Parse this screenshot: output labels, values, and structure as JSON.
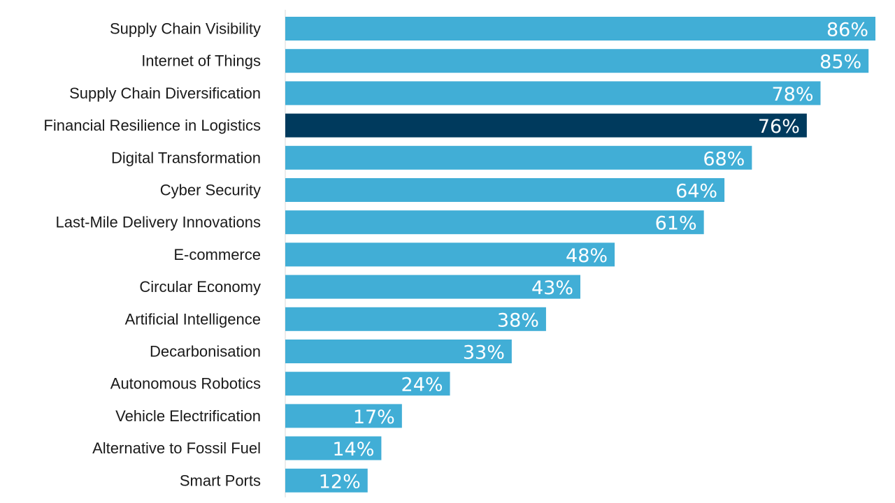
{
  "chart_data": {
    "type": "bar",
    "orientation": "horizontal",
    "categories": [
      "Supply Chain Visibility",
      "Internet of Things",
      "Supply Chain Diversification",
      "Financial Resilience in Logistics",
      "Digital Transformation",
      "Cyber Security",
      "Last-Mile Delivery Innovations",
      "E-commerce",
      "Circular Economy",
      "Artificial Intelligence",
      "Decarbonisation",
      "Autonomous Robotics",
      "Vehicle Electrification",
      "Alternative to Fossil Fuel",
      "Smart Ports"
    ],
    "values": [
      86,
      85,
      78,
      76,
      68,
      64,
      61,
      48,
      43,
      38,
      33,
      24,
      17,
      14,
      12
    ],
    "value_labels": [
      "86%",
      "85%",
      "78%",
      "76%",
      "68%",
      "64%",
      "61%",
      "48%",
      "43%",
      "38%",
      "33%",
      "24%",
      "17%",
      "14%",
      "12%"
    ],
    "highlight_index": 3,
    "title": "",
    "xlabel": "",
    "ylabel": "",
    "xlim": [
      0,
      86
    ],
    "grid": false,
    "legend": "none",
    "colors": {
      "bar": "#41aed6",
      "highlight": "#003a5d",
      "axis": "#d9d9d9",
      "value_text": "#ffffff",
      "category_text": "#1a1a1a"
    }
  }
}
